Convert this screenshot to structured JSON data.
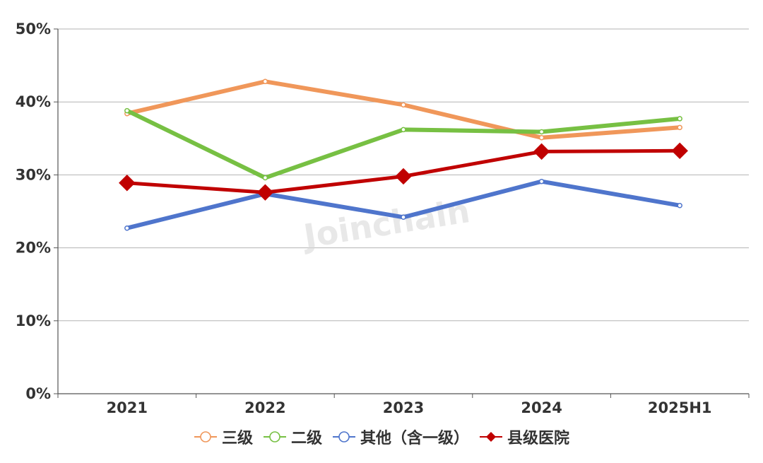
{
  "watermark": "Joinchain",
  "chart_data": {
    "type": "line",
    "categories": [
      "2021",
      "2022",
      "2023",
      "2024",
      "2025H1"
    ],
    "y_ticks": [
      "0%",
      "10%",
      "20%",
      "30%",
      "40%",
      "50%"
    ],
    "ylim": [
      0,
      50
    ],
    "y_unit": "%",
    "grid": true,
    "legend_position": "bottom",
    "series": [
      {
        "name": "三级",
        "color": "#f0975a",
        "marker": "hollow-circle",
        "values": [
          38.4,
          42.8,
          39.6,
          35.1,
          36.5
        ]
      },
      {
        "name": "二级",
        "color": "#77c043",
        "marker": "hollow-circle",
        "values": [
          38.8,
          29.6,
          36.2,
          35.9,
          37.7
        ]
      },
      {
        "name": "其他（含一级）",
        "color": "#4f75cc",
        "marker": "hollow-circle",
        "values": [
          22.7,
          27.4,
          24.2,
          29.1,
          25.8
        ]
      },
      {
        "name": "县级医院",
        "color": "#c00000",
        "marker": "filled-diamond",
        "values": [
          28.9,
          27.6,
          29.8,
          33.2,
          33.3
        ]
      }
    ]
  }
}
